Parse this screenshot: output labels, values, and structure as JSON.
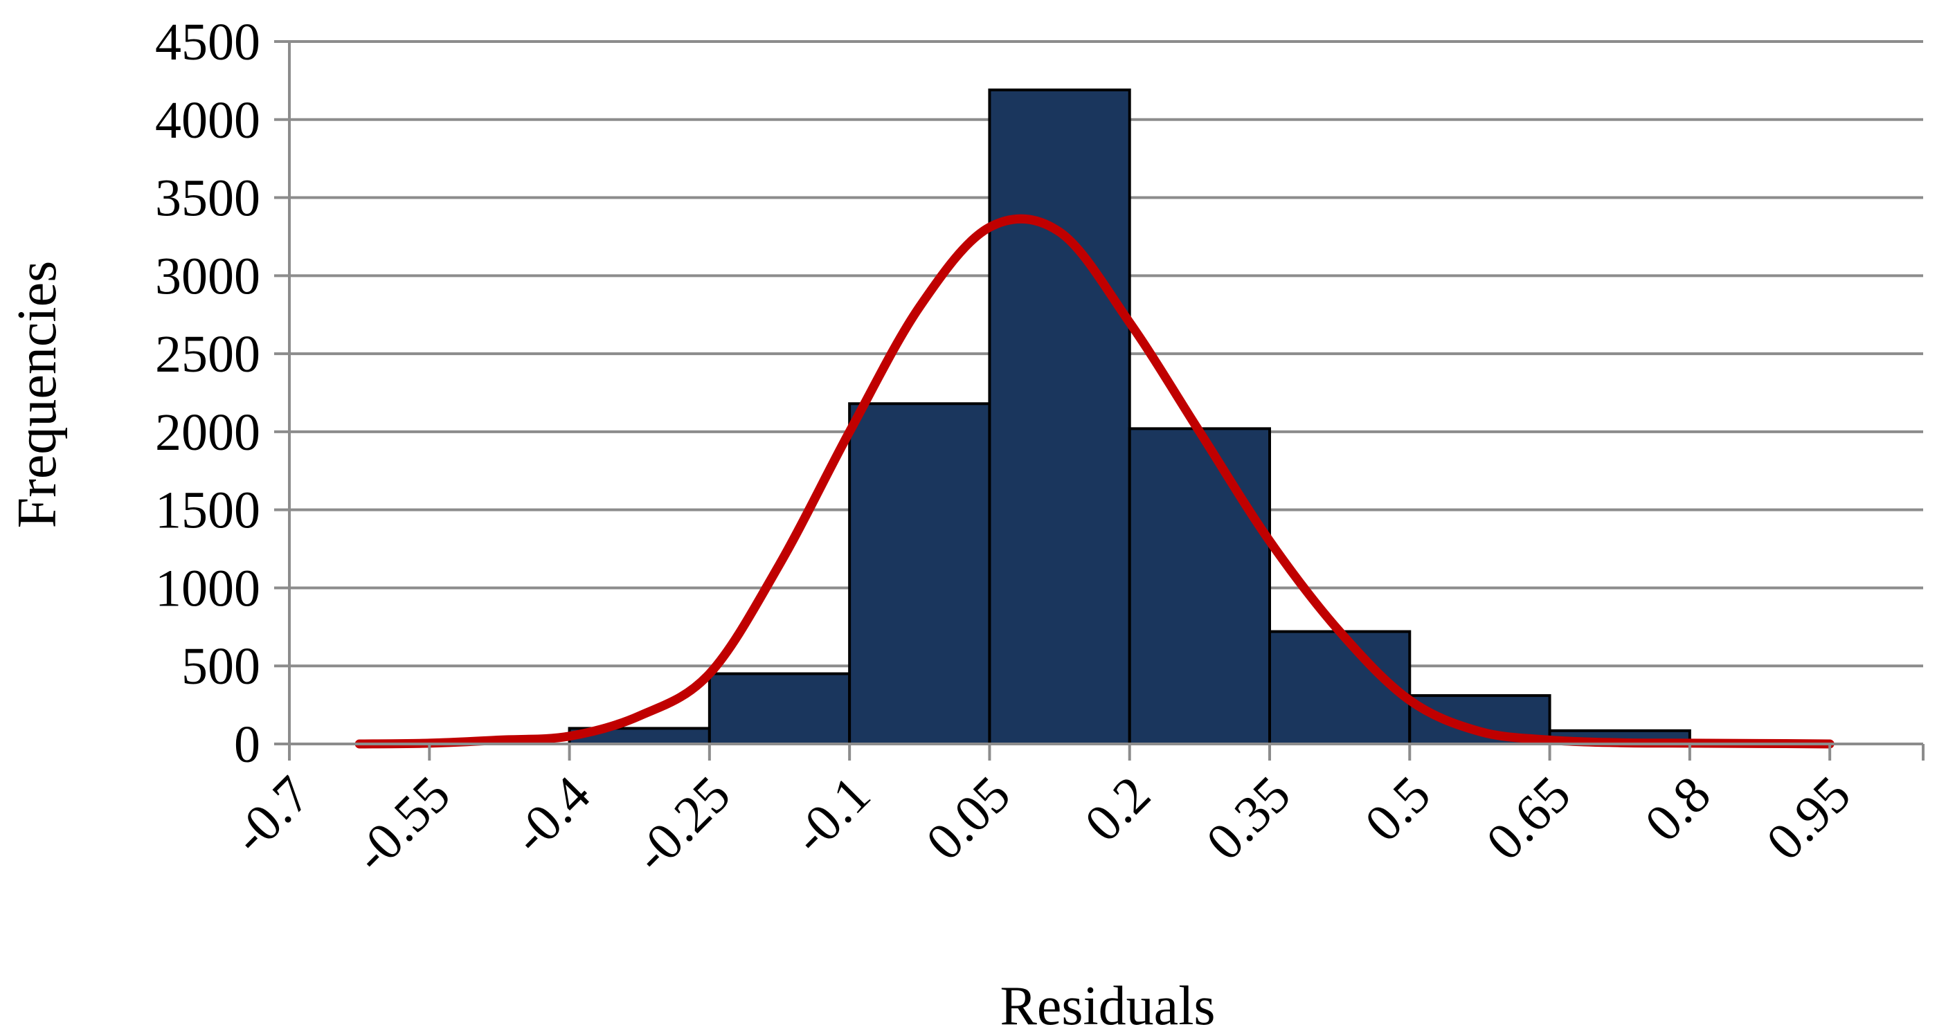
{
  "chart_data": {
    "type": "bar",
    "subtype": "histogram-with-fitted-curve",
    "title": "",
    "xlabel": "Residuals",
    "ylabel": "Frequencies",
    "ylim": [
      0,
      4500
    ],
    "yticks": [
      0,
      500,
      1000,
      1500,
      2000,
      2500,
      3000,
      3500,
      4000,
      4500
    ],
    "xlim": [
      -0.7,
      1.05
    ],
    "xticks": [
      -0.7,
      -0.55,
      -0.4,
      -0.25,
      -0.1,
      0.05,
      0.2,
      0.35,
      0.5,
      0.65,
      0.8,
      0.95
    ],
    "xtick_labels": [
      "-0.7",
      "-0.55",
      "-0.4",
      "-0.25",
      "-0.1",
      "0.05",
      "0.2",
      "0.35",
      "0.5",
      "0.65",
      "0.8",
      "0.95"
    ],
    "grid": "horizontal",
    "bins": [
      {
        "x0": -0.4,
        "x1": -0.25,
        "value": 100
      },
      {
        "x0": -0.25,
        "x1": -0.1,
        "value": 450
      },
      {
        "x0": -0.1,
        "x1": 0.05,
        "value": 2180
      },
      {
        "x0": 0.05,
        "x1": 0.2,
        "value": 4190
      },
      {
        "x0": 0.2,
        "x1": 0.35,
        "value": 2020
      },
      {
        "x0": 0.35,
        "x1": 0.5,
        "value": 720
      },
      {
        "x0": 0.5,
        "x1": 0.65,
        "value": 310
      },
      {
        "x0": 0.65,
        "x1": 0.8,
        "value": 85
      }
    ],
    "curve": {
      "x": [
        -0.625,
        -0.55,
        -0.475,
        -0.4,
        -0.325,
        -0.25,
        -0.175,
        -0.1,
        -0.025,
        0.05,
        0.125,
        0.2,
        0.275,
        0.35,
        0.425,
        0.5,
        0.575,
        0.65,
        0.725,
        0.8,
        0.875,
        0.95
      ],
      "y": [
        0,
        5,
        25,
        50,
        180,
        450,
        1150,
        2000,
        2800,
        3310,
        3280,
        2700,
        2000,
        1300,
        720,
        280,
        80,
        25,
        8,
        5,
        3,
        0
      ]
    },
    "colors": {
      "bar_fill": "#1a365d",
      "bar_stroke": "#000000",
      "curve": "#c00000",
      "grid": "#8c8c8c",
      "axis": "#8c8c8c"
    }
  }
}
